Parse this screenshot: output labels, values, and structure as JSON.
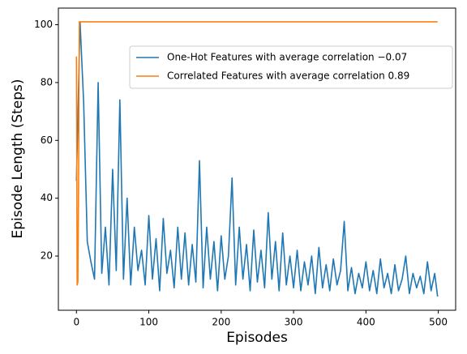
{
  "chart_data": {
    "type": "line",
    "xlabel": "Episodes",
    "ylabel": "Episode Length (Steps)",
    "xlim": [
      -24.95,
      523.95
    ],
    "ylim": [
      1.25,
      105.75
    ],
    "xticks": [
      0,
      100,
      200,
      300,
      400,
      500
    ],
    "yticks": [
      20,
      40,
      60,
      80,
      100
    ],
    "legend": "upper right",
    "series": [
      {
        "name": "One-Hot Features with average correlation −0.07",
        "color": "#1f77b4",
        "x": [
          0,
          5,
          10,
          15,
          20,
          25,
          30,
          35,
          40,
          45,
          50,
          55,
          60,
          65,
          70,
          75,
          80,
          85,
          90,
          95,
          100,
          105,
          110,
          115,
          120,
          125,
          130,
          135,
          140,
          145,
          150,
          155,
          160,
          165,
          170,
          175,
          180,
          185,
          190,
          195,
          200,
          205,
          210,
          215,
          220,
          225,
          230,
          235,
          240,
          245,
          250,
          255,
          260,
          265,
          270,
          275,
          280,
          285,
          290,
          295,
          300,
          305,
          310,
          315,
          320,
          325,
          330,
          335,
          340,
          345,
          350,
          355,
          360,
          365,
          370,
          375,
          380,
          385,
          390,
          395,
          400,
          405,
          410,
          415,
          420,
          425,
          430,
          435,
          440,
          445,
          450,
          455,
          460,
          465,
          470,
          475,
          480,
          485,
          490,
          495,
          499
        ],
        "values": [
          46,
          101,
          73,
          25,
          18,
          12,
          80,
          14,
          30,
          10,
          50,
          15,
          74,
          12,
          40,
          10,
          30,
          15,
          22,
          10,
          34,
          12,
          26,
          8,
          33,
          14,
          22,
          9,
          30,
          12,
          28,
          10,
          24,
          11,
          53,
          9,
          30,
          12,
          25,
          8,
          27,
          12,
          20,
          47,
          10,
          30,
          12,
          24,
          8,
          29,
          11,
          22,
          9,
          35,
          12,
          25,
          8,
          28,
          10,
          20,
          9,
          22,
          8,
          18,
          10,
          20,
          7,
          23,
          9,
          17,
          8,
          19,
          10,
          15,
          32,
          8,
          16,
          7,
          14,
          9,
          18,
          8,
          15,
          7,
          19,
          9,
          14,
          7,
          17,
          8,
          12,
          20,
          7,
          14,
          9,
          13,
          7,
          18,
          8,
          14,
          6
        ]
      },
      {
        "name": "Correlated Features with average correlation 0.89",
        "color": "#ff7f0e",
        "x": [
          0,
          1,
          2,
          3,
          4,
          499
        ],
        "values": [
          89,
          10,
          11,
          46,
          101,
          101
        ]
      }
    ]
  }
}
